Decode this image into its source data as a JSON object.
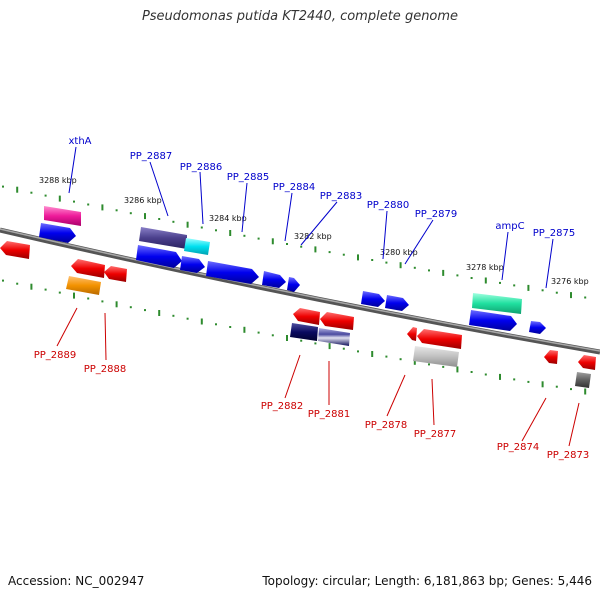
{
  "title": "Pseudomonas putida KT2440, complete genome",
  "footer": {
    "accession": "Accession: NC_002947",
    "summary": "Topology: circular; Length: 6,181,863 bp; Genes: 5,446"
  },
  "colors": {
    "backbone": "#7a7a7a",
    "tick": "#2e8b2e",
    "label_forward": "#0000cc",
    "label_reverse": "#cc0000",
    "scale_text": "#111111"
  },
  "scale_labels": [
    {
      "text": "3288 kbp"
    },
    {
      "text": "3286 kbp"
    },
    {
      "text": "3284 kbp"
    },
    {
      "text": "3282 kbp"
    },
    {
      "text": "3280 kbp"
    },
    {
      "text": "3278 kbp"
    },
    {
      "text": "3276 kbp"
    }
  ],
  "forward_labels": [
    {
      "text": "xthA"
    },
    {
      "text": "PP_2887"
    },
    {
      "text": "PP_2886"
    },
    {
      "text": "PP_2885"
    },
    {
      "text": "PP_2884"
    },
    {
      "text": "PP_2883"
    },
    {
      "text": "PP_2880"
    },
    {
      "text": "PP_2879"
    },
    {
      "text": "ampC"
    },
    {
      "text": "PP_2875"
    }
  ],
  "reverse_labels": [
    {
      "text": "PP_2889"
    },
    {
      "text": "PP_2888"
    },
    {
      "text": "PP_2882"
    },
    {
      "text": "PP_2881"
    },
    {
      "text": "PP_2878"
    },
    {
      "text": "PP_2877"
    },
    {
      "text": "PP_2874"
    },
    {
      "text": "PP_2873"
    }
  ]
}
